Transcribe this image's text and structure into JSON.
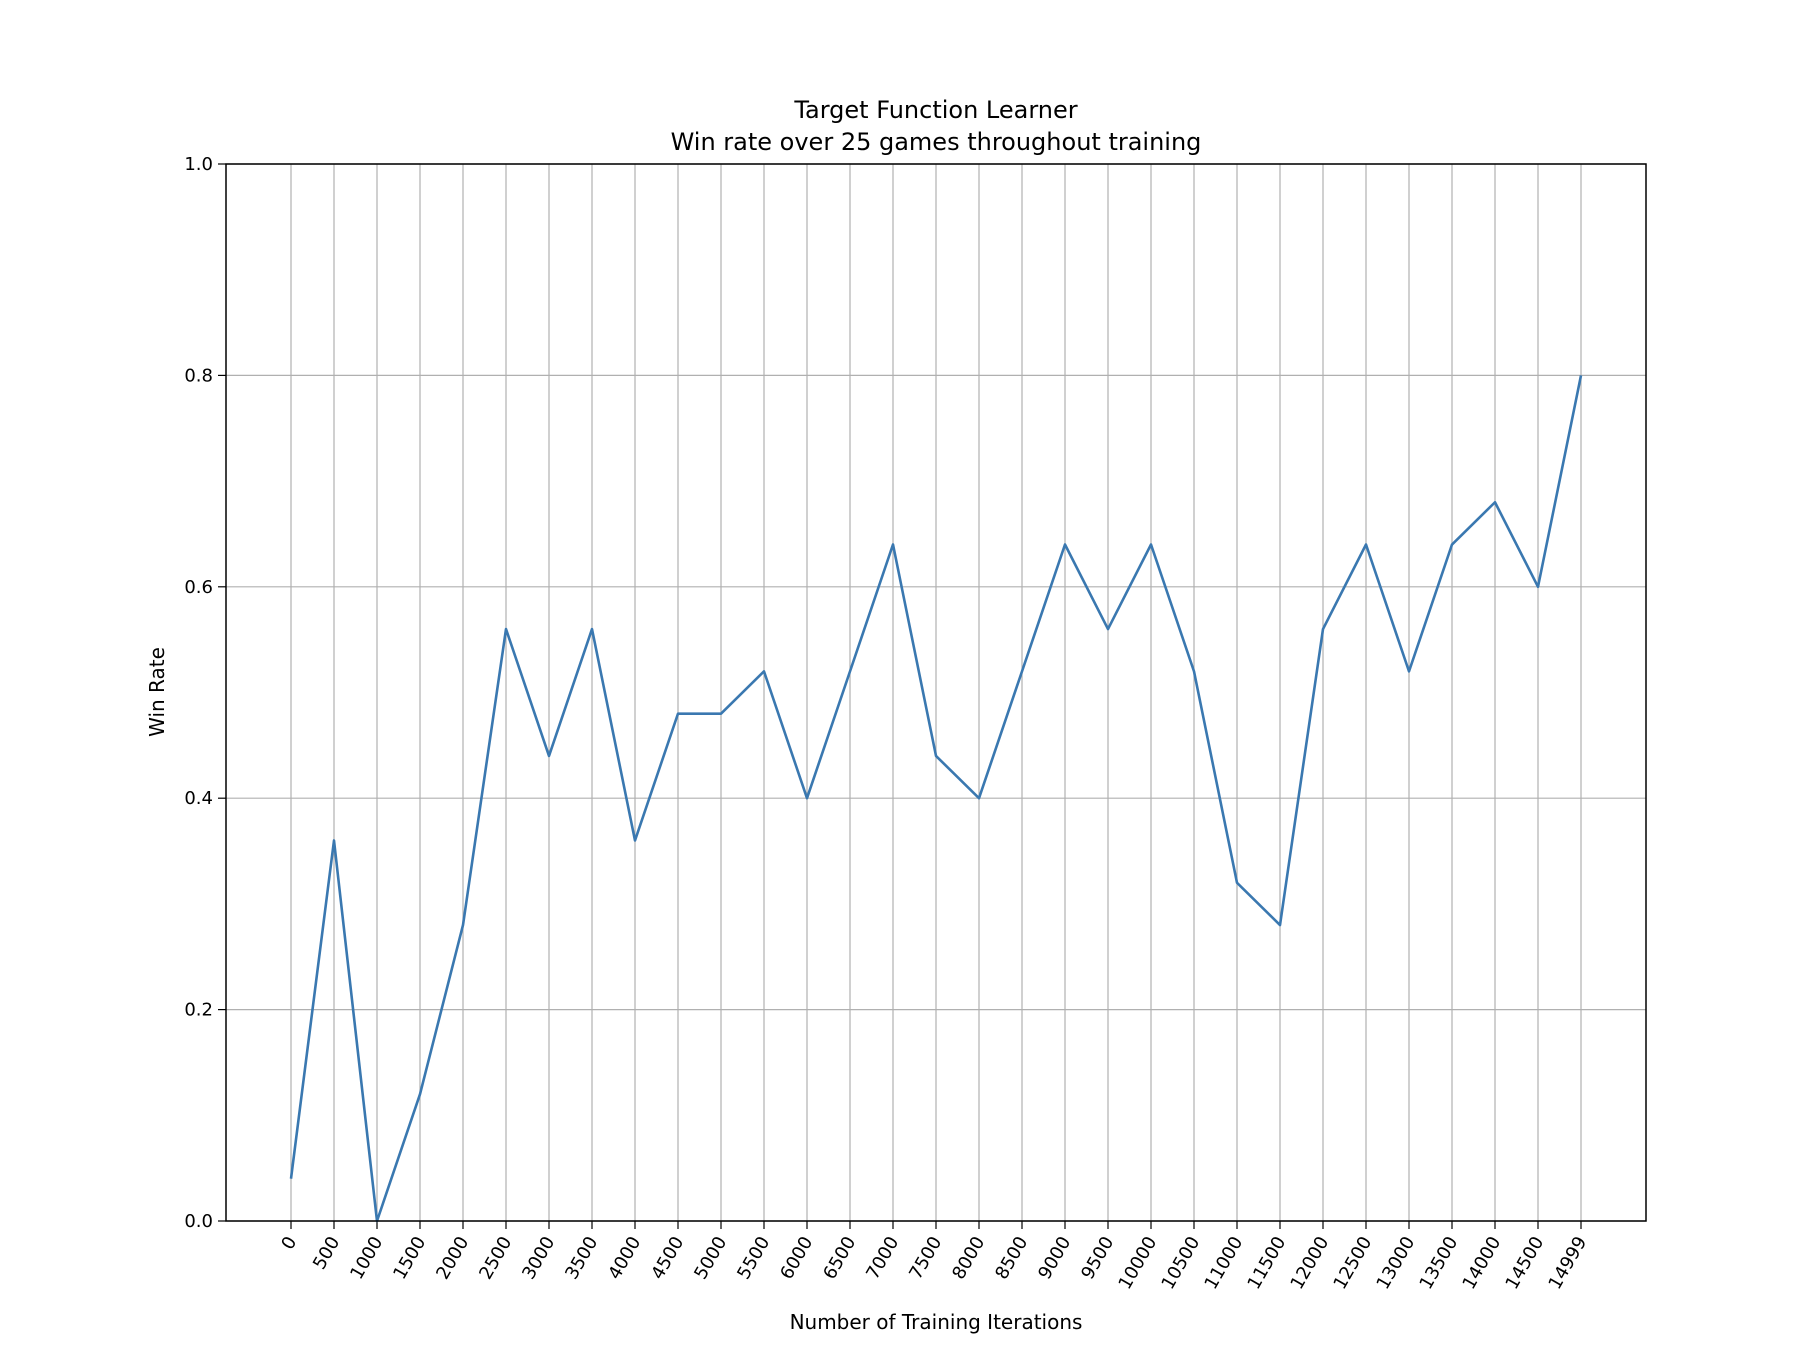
{
  "chart_data": {
    "type": "line",
    "title": "Target Function Learner",
    "subtitle": "Win rate over 25 games throughout training",
    "xlabel": "Number of Training Iterations",
    "ylabel": "Win Rate",
    "ylim": [
      0.0,
      1.0
    ],
    "yticks": [
      "0.0",
      "0.2",
      "0.4",
      "0.6",
      "0.8",
      "1.0"
    ],
    "grid": true,
    "legend": "none",
    "x": [
      "0",
      "500",
      "1000",
      "1500",
      "2000",
      "2500",
      "3000",
      "3500",
      "4000",
      "4500",
      "5000",
      "5500",
      "6000",
      "6500",
      "7000",
      "7500",
      "8000",
      "8500",
      "9000",
      "9500",
      "10000",
      "10500",
      "11000",
      "11500",
      "12000",
      "12500",
      "13000",
      "13500",
      "14000",
      "14500",
      "14999"
    ],
    "series": [
      {
        "color": "#3a78b0",
        "values": [
          0.04,
          0.36,
          0.0,
          0.12,
          0.28,
          0.56,
          0.44,
          0.56,
          0.36,
          0.48,
          0.48,
          0.52,
          0.4,
          0.52,
          0.64,
          0.44,
          0.4,
          0.52,
          0.64,
          0.56,
          0.64,
          0.52,
          0.32,
          0.28,
          0.56,
          0.64,
          0.52,
          0.64,
          0.68,
          0.6,
          0.8
        ]
      }
    ],
    "colors": {
      "grid": "#b0b0b0",
      "axes": "#000000"
    }
  }
}
